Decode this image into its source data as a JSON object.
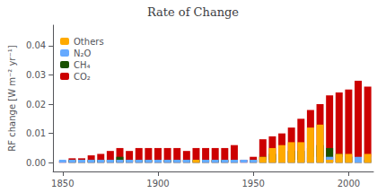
{
  "chart_data": {
    "type": "bar",
    "title": "Rate of Change",
    "ylabel": "RF change [W m⁻² yr⁻¹]",
    "x": [
      1850,
      1855,
      1860,
      1865,
      1870,
      1875,
      1880,
      1885,
      1890,
      1895,
      1900,
      1905,
      1910,
      1915,
      1920,
      1925,
      1930,
      1935,
      1940,
      1945,
      1950,
      1955,
      1960,
      1965,
      1970,
      1975,
      1980,
      1985,
      1990,
      1995,
      2000,
      2005,
      2010
    ],
    "series": [
      {
        "name": "CO₂",
        "color": "#cc0000",
        "values": [
          0.0005,
          0.0015,
          0.0015,
          0.0025,
          0.003,
          0.004,
          0.005,
          0.004,
          0.005,
          0.005,
          0.005,
          0.005,
          0.005,
          0.004,
          0.005,
          0.005,
          0.005,
          0.005,
          0.006,
          0.001,
          0.002,
          0.008,
          0.009,
          0.01,
          0.012,
          0.015,
          0.018,
          0.02,
          0.023,
          0.024,
          0.025,
          0.028,
          0.026
        ]
      },
      {
        "name": "CH₄",
        "color": "#1a5200",
        "values": [
          0.0,
          0.001,
          0.001,
          0.001,
          0.001,
          0.001,
          0.002,
          0.001,
          0.001,
          0.001,
          0.001,
          0.001,
          0.001,
          0.001,
          0.001,
          0.001,
          0.001,
          0.001,
          0.001,
          0.0,
          0.001,
          0.002,
          0.003,
          0.003,
          0.004,
          0.004,
          0.005,
          0.006,
          0.005,
          0.003,
          0.002,
          0.001,
          0.001
        ]
      },
      {
        "name": "N₂O",
        "color": "#66aaff",
        "values": [
          0.001,
          0.001,
          0.001,
          0.001,
          0.001,
          0.001,
          0.001,
          0.001,
          0.001,
          0.001,
          0.001,
          0.001,
          0.001,
          0.001,
          0.001,
          0.001,
          0.001,
          0.001,
          0.001,
          0.001,
          0.001,
          0.001,
          0.001,
          0.001,
          0.001,
          0.001,
          0.002,
          0.002,
          0.002,
          0.002,
          0.002,
          0.002,
          0.002
        ]
      },
      {
        "name": "Others",
        "color": "#ffaa00",
        "values": [
          0.0,
          0.0,
          0.0,
          0.0,
          0.0,
          0.0,
          0.0,
          0.0,
          0.0,
          0.0,
          0.0,
          0.0,
          0.0,
          0.0,
          0.001,
          0.0,
          0.0,
          0.0,
          0.0,
          0.0,
          0.0,
          0.002,
          0.005,
          0.006,
          0.007,
          0.007,
          0.012,
          0.013,
          0.001,
          0.003,
          0.003,
          0.0,
          0.003
        ]
      }
    ],
    "stacked": true,
    "xlim": [
      1845,
      2013
    ],
    "xticks": [
      1850,
      1900,
      1950,
      2000
    ],
    "ylim": [
      -0.003,
      0.047
    ],
    "yticks": [
      {
        "value": 0,
        "label": "0.00"
      },
      0.01,
      0.02,
      0.03,
      0.04
    ],
    "grid": false,
    "legend": "upper left"
  }
}
